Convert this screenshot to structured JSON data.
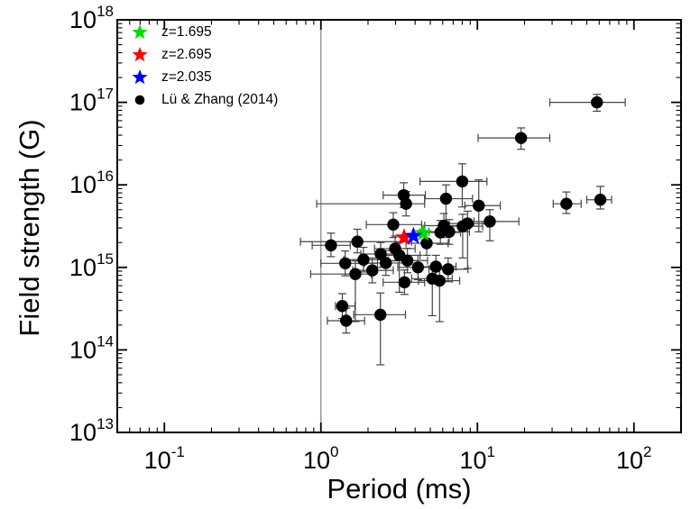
{
  "chart_data": {
    "type": "scatter",
    "title": "",
    "xlabel": "Period (ms)",
    "ylabel": "Field strength (G)",
    "x_scale": "log",
    "y_scale": "log",
    "xlim": [
      0.05,
      200
    ],
    "ylim": [
      10000000000000.0,
      1e+18
    ],
    "x_tick_exponents": [
      -1,
      0,
      1,
      2
    ],
    "y_tick_exponents": [
      13,
      14,
      15,
      16,
      17,
      18
    ],
    "grid": false,
    "frame_color": "#000000",
    "marker_color": "#000000",
    "errorbar_color": "#444444",
    "reference_line": {
      "x": 1,
      "color": "#8a8a8a"
    },
    "legend": {
      "position": "top-left"
    },
    "series": [
      {
        "name": "z=1.695",
        "marker": "star",
        "color": "#00dd00",
        "points": [
          {
            "period_ms": 4.5,
            "field_G": 2600000000000000.0
          }
        ]
      },
      {
        "name": "z=2.695",
        "marker": "star",
        "color": "#ff0000",
        "points": [
          {
            "period_ms": 3.4,
            "field_G": 2300000000000000.0
          }
        ]
      },
      {
        "name": "z=2.035",
        "marker": "star",
        "color": "#0000ff",
        "points": [
          {
            "period_ms": 3.9,
            "field_G": 2400000000000000.0
          }
        ]
      },
      {
        "name": "Lü & Zhang (2014)",
        "marker": "circle",
        "color": "#000000",
        "points": [
          {
            "period_ms": 58,
            "p_lo": 29,
            "p_hi": 88,
            "field_G": 1e+17,
            "b_lo": 7.8e+16,
            "b_hi": 1.25e+17
          },
          {
            "period_ms": 19,
            "p_lo": 10.1,
            "p_hi": 29,
            "field_G": 3.7e+16,
            "b_lo": 2.7e+16,
            "b_hi": 4.9e+16
          },
          {
            "period_ms": 37,
            "p_lo": 30.5,
            "p_hi": 46,
            "field_G": 5900000000000000.0,
            "b_lo": 4500000000000000.0,
            "b_hi": 8200000000000000.0
          },
          {
            "period_ms": 61,
            "p_lo": 50,
            "p_hi": 72,
            "field_G": 6600000000000000.0,
            "b_lo": 5100000000000000.0,
            "b_hi": 9600000000000000.0
          },
          {
            "period_ms": 8.0,
            "p_lo": 4.3,
            "p_hi": 11.5,
            "field_G": 1.1e+16,
            "b_lo": 5400000000000000.0,
            "b_hi": 1.8e+16
          },
          {
            "period_ms": 10.2,
            "p_lo": 8.3,
            "p_hi": 14,
            "field_G": 5600000000000000.0,
            "b_lo": 2700000000000000.0,
            "b_hi": 1.15e+16
          },
          {
            "period_ms": 12.0,
            "p_lo": 9.5,
            "p_hi": 18.4,
            "field_G": 3600000000000000.0,
            "b_lo": 2100000000000000.0,
            "b_hi": 5000000000000000.0
          },
          {
            "period_ms": 6.3,
            "p_lo": 4.6,
            "p_hi": 9.3,
            "field_G": 6800000000000000.0,
            "b_lo": 3500000000000000.0,
            "b_hi": 1e+16
          },
          {
            "period_ms": 5.8,
            "p_lo": 4.3,
            "p_hi": 7.8,
            "field_G": 2650000000000000.0,
            "b_lo": 1900000000000000.0,
            "b_hi": 3700000000000000.0
          },
          {
            "period_ms": 6.1,
            "p_lo": 4.6,
            "p_hi": 8.2,
            "field_G": 3200000000000000.0,
            "b_lo": 2300000000000000.0,
            "b_hi": 4500000000000000.0
          },
          {
            "period_ms": 6.6,
            "p_lo": 4.9,
            "p_hi": 8.9,
            "field_G": 2700000000000000.0,
            "b_lo": 1900000000000000.0,
            "b_hi": 3800000000000000.0
          },
          {
            "period_ms": 8.05,
            "p_lo": 6.0,
            "p_hi": 10.8,
            "field_G": 3150000000000000.0,
            "b_lo": 1300000000000000.0,
            "b_hi": 4400000000000000.0
          },
          {
            "period_ms": 8.65,
            "p_lo": 6.4,
            "p_hi": 11.6,
            "field_G": 3400000000000000.0,
            "b_lo": 970000000000000.0,
            "b_hi": 4800000000000000.0
          },
          {
            "period_ms": 2.9,
            "p_lo": 1.95,
            "p_hi": 4.4,
            "field_G": 3300000000000000.0,
            "b_lo": 2300000000000000.0,
            "b_hi": 4600000000000000.0
          },
          {
            "period_ms": 3.38,
            "p_lo": 2.5,
            "p_hi": 4.65,
            "field_G": 7500000000000000.0,
            "b_lo": 5300000000000000.0,
            "b_hi": 1.06e+16
          },
          {
            "period_ms": 3.5,
            "p_lo": 0.94,
            "p_hi": 4.6,
            "field_G": 5900000000000000.0,
            "b_lo": 4200000000000000.0,
            "b_hi": 8300000000000000.0
          },
          {
            "period_ms": 1.71,
            "p_lo": 0.74,
            "p_hi": 3.8,
            "field_G": 2050000000000000.0,
            "b_lo": 1500000000000000.0,
            "b_hi": 2900000000000000.0
          },
          {
            "period_ms": 1.16,
            "p_lo": 0.88,
            "p_hi": 1.54,
            "field_G": 1850000000000000.0,
            "b_lo": 1350000000000000.0,
            "b_hi": 2600000000000000.0
          },
          {
            "period_ms": 1.87,
            "p_lo": 1.4,
            "p_hi": 2.5,
            "field_G": 1240000000000000.0,
            "b_lo": 880000000000000.0,
            "b_hi": 1750000000000000.0
          },
          {
            "period_ms": 1.43,
            "p_lo": 1.0,
            "p_hi": 2.3,
            "field_G": 1120000000000000.0,
            "b_lo": 790000000000000.0,
            "b_hi": 1580000000000000.0
          },
          {
            "period_ms": 1.66,
            "p_lo": 0.86,
            "p_hi": 2.1,
            "field_G": 830000000000000.0,
            "b_lo": 220000000000000.0,
            "b_hi": 1200000000000000.0
          },
          {
            "period_ms": 2.13,
            "p_lo": 1.6,
            "p_hi": 2.9,
            "field_G": 920000000000000.0,
            "b_lo": 650000000000000.0,
            "b_hi": 1300000000000000.0
          },
          {
            "period_ms": 2.41,
            "p_lo": 1.8,
            "p_hi": 3.2,
            "field_G": 1450000000000000.0,
            "b_lo": 1000000000000000.0,
            "b_hi": 2000000000000000.0
          },
          {
            "period_ms": 2.6,
            "p_lo": 1.9,
            "p_hi": 3.5,
            "field_G": 1130000000000000.0,
            "b_lo": 800000000000000.0,
            "b_hi": 1600000000000000.0
          },
          {
            "period_ms": 1.37,
            "p_lo": 1.24,
            "p_hi": 1.65,
            "field_G": 340000000000000.0,
            "b_lo": 240000000000000.0,
            "b_hi": 480000000000000.0
          },
          {
            "period_ms": 1.45,
            "p_lo": 1.1,
            "p_hi": 1.9,
            "field_G": 226000000000000.0,
            "b_lo": 160000000000000.0,
            "b_hi": 320000000000000.0
          },
          {
            "period_ms": 2.4,
            "p_lo": 1.62,
            "p_hi": 3.47,
            "field_G": 267000000000000.0,
            "b_lo": 66000000000000.0,
            "b_hi": 490000000000000.0
          },
          {
            "period_ms": 3.17,
            "p_lo": 2.4,
            "p_hi": 4.3,
            "field_G": 1400000000000000.0,
            "b_lo": 500000000000000.0,
            "b_hi": 2000000000000000.0
          },
          {
            "period_ms": 3.57,
            "p_lo": 2.7,
            "p_hi": 4.8,
            "field_G": 1210000000000000.0,
            "b_lo": 860000000000000.0,
            "b_hi": 1700000000000000.0
          },
          {
            "period_ms": 4.17,
            "p_lo": 3.1,
            "p_hi": 5.6,
            "field_G": 1000000000000000.0,
            "b_lo": 710000000000000.0,
            "b_hi": 1400000000000000.0
          },
          {
            "period_ms": 5.43,
            "p_lo": 4.0,
            "p_hi": 7.3,
            "field_G": 1020000000000000.0,
            "b_lo": 720000000000000.0,
            "b_hi": 1400000000000000.0
          },
          {
            "period_ms": 6.5,
            "p_lo": 4.9,
            "p_hi": 8.7,
            "field_G": 950000000000000.0,
            "b_lo": 670000000000000.0,
            "b_hi": 1300000000000000.0
          },
          {
            "period_ms": 5.15,
            "p_lo": 3.8,
            "p_hi": 6.9,
            "field_G": 730000000000000.0,
            "b_lo": 260000000000000.0,
            "b_hi": 1000000000000000.0
          },
          {
            "period_ms": 5.73,
            "p_lo": 4.2,
            "p_hi": 7.7,
            "field_G": 690000000000000.0,
            "b_lo": 220000000000000.0,
            "b_hi": 970000000000000.0
          },
          {
            "period_ms": 3.42,
            "p_lo": 2.5,
            "p_hi": 4.6,
            "field_G": 660000000000000.0,
            "b_lo": 470000000000000.0,
            "b_hi": 930000000000000.0
          },
          {
            "period_ms": 2.98,
            "p_lo": 2.2,
            "p_hi": 4.0,
            "field_G": 1690000000000000.0,
            "b_lo": 1200000000000000.0,
            "b_hi": 2400000000000000.0
          },
          {
            "period_ms": 4.74,
            "p_lo": 3.5,
            "p_hi": 6.5,
            "field_G": 1960000000000000.0,
            "b_lo": 1400000000000000.0,
            "b_hi": 2750000000000000.0
          }
        ]
      }
    ]
  }
}
